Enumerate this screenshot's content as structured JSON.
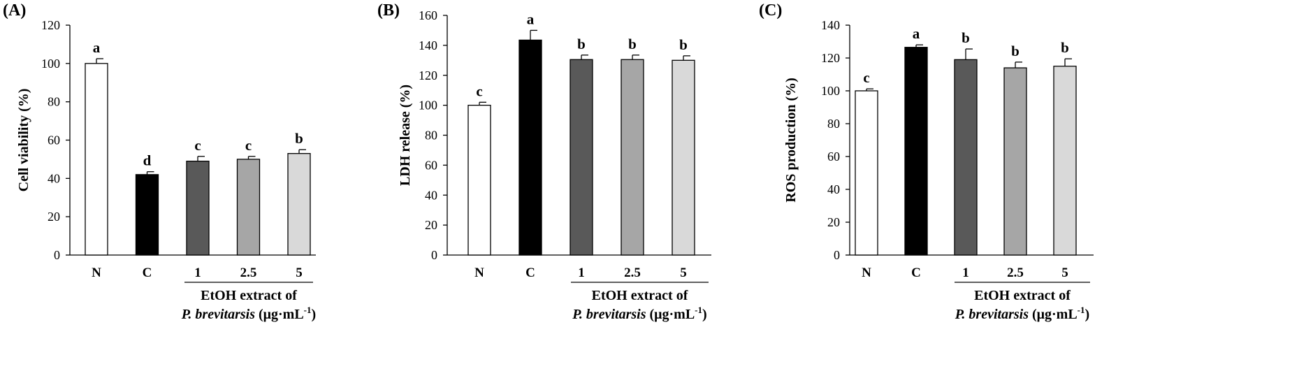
{
  "chart_data": [
    {
      "type": "bar",
      "panel_label": "(A)",
      "categories": [
        "N",
        "C",
        "1",
        "2.5",
        "5"
      ],
      "values": [
        100,
        42,
        49,
        50,
        53
      ],
      "errors": [
        2.5,
        1.5,
        2.5,
        1.5,
        2
      ],
      "significance": [
        "a",
        "d",
        "c",
        "c",
        "b"
      ],
      "ylabel": "Cell viability (%)",
      "ylim": [
        0,
        120
      ],
      "yticks": [
        "0",
        "20",
        "40",
        "60",
        "80",
        "100",
        "120"
      ],
      "group_label_line1": "EtOH extract of",
      "group_label_species": "P. brevitarsis",
      "group_label_unit": " (μg·mL",
      "group_label_sup": "-1",
      "group_label_close": ")",
      "grid": false
    },
    {
      "type": "bar",
      "panel_label": "(B)",
      "categories": [
        "N",
        "C",
        "1",
        "2.5",
        "5"
      ],
      "values": [
        100,
        143.5,
        130.5,
        130.5,
        130
      ],
      "errors": [
        2,
        6.5,
        3,
        3,
        3
      ],
      "significance": [
        "c",
        "a",
        "b",
        "b",
        "b"
      ],
      "ylabel": "LDH release (%)",
      "ylim": [
        0,
        160
      ],
      "yticks": [
        "0",
        "20",
        "40",
        "60",
        "80",
        "100",
        "120",
        "140",
        "160"
      ],
      "group_label_line1": "EtOH extract of",
      "group_label_species": "P. brevitarsis",
      "group_label_unit": " (μg·mL",
      "group_label_sup": "-1",
      "group_label_close": ")",
      "grid": false
    },
    {
      "type": "bar",
      "panel_label": "(C)",
      "categories": [
        "N",
        "C",
        "1",
        "2.5",
        "5"
      ],
      "values": [
        100,
        126.5,
        119,
        114,
        115
      ],
      "errors": [
        1.2,
        1.5,
        6.5,
        3.5,
        4.5
      ],
      "significance": [
        "c",
        "a",
        "b",
        "b",
        "b"
      ],
      "ylabel": "ROS production (%)",
      "ylim": [
        0,
        140
      ],
      "yticks": [
        "0",
        "20",
        "40",
        "60",
        "80",
        "100",
        "120",
        "140"
      ],
      "group_label_line1": "EtOH extract of",
      "group_label_species": "P. brevitarsis",
      "group_label_unit": " (μg·mL",
      "group_label_sup": "-1",
      "group_label_close": ")",
      "grid": false
    }
  ],
  "colors": {
    "bar_fills": [
      "#ffffff",
      "#000000",
      "#595959",
      "#a6a6a6",
      "#d9d9d9"
    ],
    "bar_stroke": "#000000",
    "axis": "#000000"
  }
}
